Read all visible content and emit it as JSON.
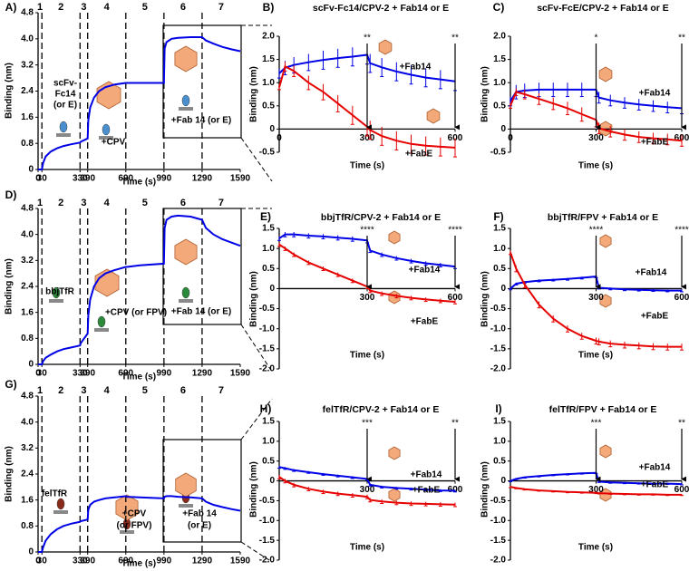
{
  "chart_data": [
    {
      "type": "line",
      "panel": "A)",
      "xlabel": "Time (s)",
      "ylabel": "Binding (nm)",
      "xlim": [
        0,
        1590
      ],
      "xticks": [
        0,
        30,
        330,
        390,
        690,
        990,
        1290,
        1590
      ],
      "ylim": [
        0,
        4.8
      ],
      "yticks": [
        0,
        0.8,
        1.6,
        2.4,
        3.2,
        {
          "value": 4,
          "label": "4.0"
        },
        4.8
      ],
      "steps": [
        "1",
        "2",
        "3",
        "4",
        "5",
        "6",
        "7"
      ],
      "annotations": [
        "scFv-",
        "Fc14",
        "(or E)",
        "+CPV",
        "+Fab 14 (or E)"
      ],
      "x": [
        0,
        30,
        40,
        60,
        100,
        150,
        200,
        260,
        330,
        335,
        390,
        395,
        410,
        440,
        480,
        530,
        600,
        690,
        700,
        800,
        990,
        995,
        1010,
        1050,
        1100,
        1200,
        1290,
        1320,
        1380,
        1450,
        1520,
        1590
      ],
      "series": [
        {
          "color": "#0000e6",
          "values": [
            0,
            0,
            0.2,
            0.4,
            0.55,
            0.65,
            0.72,
            0.77,
            0.82,
            0.85,
            0.95,
            1.5,
            1.9,
            2.2,
            2.4,
            2.52,
            2.6,
            2.65,
            2.65,
            2.65,
            2.65,
            3.7,
            3.9,
            4.0,
            4.03,
            4.05,
            4.05,
            3.95,
            3.85,
            3.75,
            3.68,
            3.62
          ]
        }
      ]
    },
    {
      "type": "line",
      "panel": "B)",
      "title": "scFv-Fc14/CPV-2 + Fab14 or E",
      "xlabel": "Time (s)",
      "ylabel": "Binding (nm)",
      "xlim": [
        0,
        600
      ],
      "xticks": [
        0,
        300,
        600
      ],
      "ylim": [
        -0.5,
        2
      ],
      "yticks": [
        -0.5,
        0,
        0.5,
        {
          "value": 1,
          "label": "1.0"
        },
        1.5,
        {
          "value": 2,
          "label": "2.0"
        }
      ],
      "arrows": [
        {
          "x": 300,
          "label": "**"
        },
        {
          "x": 600,
          "label": "**"
        }
      ],
      "x": [
        0,
        20,
        50,
        100,
        150,
        200,
        250,
        300,
        310,
        350,
        400,
        450,
        500,
        550,
        600
      ],
      "series": [
        {
          "name": "+Fab14",
          "color": "#0000e6",
          "values": [
            1.2,
            1.32,
            1.38,
            1.44,
            1.49,
            1.53,
            1.56,
            1.6,
            1.42,
            1.33,
            1.24,
            1.17,
            1.11,
            1.07,
            1.03
          ],
          "errors": [
            0.1,
            0.15,
            0.17,
            0.18,
            0.2,
            0.2,
            0.2,
            0.2,
            0.2,
            0.2,
            0.2,
            0.2,
            0.2,
            0.2,
            0.2
          ]
        },
        {
          "name": "+FabE",
          "color": "#e60000",
          "values": [
            0.9,
            1.35,
            1.25,
            1.0,
            0.8,
            0.55,
            0.3,
            0.05,
            -0.02,
            -0.15,
            -0.25,
            -0.32,
            -0.36,
            -0.38,
            -0.4
          ],
          "errors": [
            0.05,
            0.1,
            0.12,
            0.15,
            0.17,
            0.18,
            0.2,
            0.2,
            0.2,
            0.2,
            0.2,
            0.2,
            0.2,
            0.2,
            0.2
          ]
        }
      ]
    },
    {
      "type": "line",
      "panel": "C)",
      "title": "scFv-FcE/CPV-2 + Fab14 or E",
      "xlabel": "Time (s)",
      "ylabel": "Binding (nm)",
      "xlim": [
        0,
        600
      ],
      "xticks": [
        0,
        300,
        600
      ],
      "ylim": [
        -0.5,
        2
      ],
      "yticks": [
        -0.5,
        0,
        0.5,
        {
          "value": 1,
          "label": "1.0"
        },
        1.5,
        {
          "value": 2,
          "label": "2.0"
        }
      ],
      "arrows": [
        {
          "x": 300,
          "label": "*"
        },
        {
          "x": 600,
          "label": "**"
        }
      ],
      "x": [
        0,
        20,
        50,
        100,
        150,
        200,
        250,
        300,
        310,
        350,
        400,
        450,
        500,
        550,
        600
      ],
      "series": [
        {
          "name": "+Fab14",
          "color": "#0000e6",
          "values": [
            0.6,
            0.8,
            0.83,
            0.85,
            0.85,
            0.85,
            0.85,
            0.85,
            0.68,
            0.62,
            0.57,
            0.53,
            0.5,
            0.47,
            0.45
          ],
          "errors": [
            0.1,
            0.15,
            0.15,
            0.15,
            0.15,
            0.15,
            0.15,
            0.15,
            0.12,
            0.12,
            0.12,
            0.12,
            0.12,
            0.12,
            0.12
          ]
        },
        {
          "name": "+FabE",
          "color": "#e60000",
          "values": [
            0.5,
            0.8,
            0.75,
            0.65,
            0.55,
            0.45,
            0.32,
            0.2,
            0.02,
            -0.05,
            -0.12,
            -0.17,
            -0.2,
            -0.22,
            -0.25
          ],
          "errors": [
            0.05,
            0.08,
            0.1,
            0.12,
            0.13,
            0.14,
            0.15,
            0.15,
            0.12,
            0.12,
            0.12,
            0.12,
            0.12,
            0.12,
            0.12
          ]
        }
      ]
    },
    {
      "type": "line",
      "panel": "D)",
      "xlabel": "Time (s)",
      "ylabel": "Binding (nm)",
      "xlim": [
        0,
        1590
      ],
      "xticks": [
        0,
        30,
        330,
        390,
        690,
        990,
        1290,
        1590
      ],
      "ylim": [
        0,
        4.8
      ],
      "yticks": [
        0,
        0.8,
        1.6,
        2.4,
        3.2,
        {
          "value": 4,
          "label": "4.0"
        },
        4.8
      ],
      "steps": [
        "1",
        "2",
        "3",
        "4",
        "5",
        "6",
        "7"
      ],
      "annotations": [
        "bbjTfR",
        "+CPV (or FPV)",
        "+Fab 14 (or E)"
      ],
      "x": [
        0,
        30,
        40,
        60,
        100,
        150,
        200,
        260,
        330,
        335,
        390,
        395,
        410,
        440,
        480,
        530,
        600,
        690,
        700,
        800,
        990,
        995,
        1010,
        1050,
        1100,
        1200,
        1290,
        1320,
        1380,
        1450,
        1520,
        1590
      ],
      "series": [
        {
          "color": "#0000e6",
          "values": [
            0,
            0,
            0.1,
            0.2,
            0.3,
            0.4,
            0.47,
            0.52,
            0.58,
            0.65,
            0.95,
            1.5,
            2.0,
            2.4,
            2.65,
            2.8,
            2.9,
            3.0,
            3.0,
            3.05,
            3.1,
            4.2,
            4.45,
            4.55,
            4.58,
            4.55,
            4.45,
            4.2,
            4.0,
            3.85,
            3.75,
            3.65
          ]
        }
      ]
    },
    {
      "type": "line",
      "panel": "E)",
      "title": "bbjTfR/CPV-2 + Fab14 or E",
      "xlabel": "Time (s)",
      "ylabel": "Binding (nm)",
      "xlim": [
        0,
        600
      ],
      "xticks": [
        300,
        600
      ],
      "ylim": [
        -2,
        1.5
      ],
      "yticks": [
        {
          "value": -2,
          "label": "-2.0"
        },
        -1.5,
        {
          "value": -1,
          "label": "-1.0"
        },
        -0.5,
        0,
        0.5,
        {
          "value": 1,
          "label": "1.0"
        },
        1.5
      ],
      "arrows": [
        {
          "x": 300,
          "label": "****"
        },
        {
          "x": 600,
          "label": "****"
        }
      ],
      "x": [
        0,
        20,
        50,
        100,
        150,
        200,
        250,
        300,
        310,
        350,
        400,
        450,
        500,
        550,
        600
      ],
      "series": [
        {
          "name": "+Fab14",
          "color": "#0000e6",
          "values": [
            1.25,
            1.35,
            1.35,
            1.32,
            1.3,
            1.27,
            1.24,
            1.2,
            0.95,
            0.85,
            0.76,
            0.69,
            0.63,
            0.59,
            0.55
          ],
          "errors": [
            0.05,
            0.06,
            0.06,
            0.06,
            0.06,
            0.06,
            0.06,
            0.06,
            0.05,
            0.05,
            0.05,
            0.05,
            0.05,
            0.05,
            0.05
          ]
        },
        {
          "name": "+FabE",
          "color": "#e60000",
          "values": [
            1.1,
            1.0,
            0.85,
            0.65,
            0.5,
            0.35,
            0.2,
            0.05,
            -0.05,
            -0.12,
            -0.18,
            -0.23,
            -0.27,
            -0.3,
            -0.33
          ],
          "errors": [
            0.05,
            0.05,
            0.05,
            0.05,
            0.05,
            0.05,
            0.05,
            0.05,
            0.05,
            0.05,
            0.05,
            0.05,
            0.05,
            0.05,
            0.05
          ]
        }
      ]
    },
    {
      "type": "line",
      "panel": "F)",
      "title": "bbjTfR/FPV + Fab14 or E",
      "xlabel": "Time (s)",
      "ylabel": "Binding (nm)",
      "xlim": [
        0,
        600
      ],
      "xticks": [
        300,
        600
      ],
      "ylim": [
        -2,
        1.5
      ],
      "yticks": [
        {
          "value": -2,
          "label": "-2.0"
        },
        -1.5,
        {
          "value": -1,
          "label": "-1.0"
        },
        -0.5,
        0,
        0.5,
        {
          "value": 1,
          "label": "1.0"
        },
        1.5
      ],
      "arrows": [
        {
          "x": 300,
          "label": "****"
        },
        {
          "x": 600,
          "label": "****"
        }
      ],
      "x": [
        0,
        20,
        50,
        100,
        150,
        200,
        250,
        300,
        310,
        350,
        400,
        450,
        500,
        550,
        600
      ],
      "series": [
        {
          "name": "+Fab14",
          "color": "#0000e6",
          "values": [
            0,
            0.12,
            0.16,
            0.2,
            0.22,
            0.24,
            0.27,
            0.3,
            0.02,
            0,
            -0.02,
            -0.03,
            -0.04,
            -0.05,
            -0.05
          ],
          "errors": [
            0.03,
            0.03,
            0.03,
            0.03,
            0.03,
            0.03,
            0.03,
            0.03,
            0.03,
            0.03,
            0.03,
            0.03,
            0.03,
            0.03,
            0.03
          ]
        },
        {
          "name": "+FabE",
          "color": "#e60000",
          "values": [
            0.9,
            0.5,
            0.1,
            -0.4,
            -0.75,
            -1.0,
            -1.18,
            -1.3,
            -1.32,
            -1.37,
            -1.4,
            -1.42,
            -1.44,
            -1.45,
            -1.45
          ],
          "errors": [
            0.05,
            0.08,
            0.08,
            0.08,
            0.08,
            0.08,
            0.08,
            0.08,
            0.08,
            0.08,
            0.08,
            0.08,
            0.08,
            0.08,
            0.08
          ]
        }
      ]
    },
    {
      "type": "line",
      "panel": "G)",
      "xlabel": "Time (s)",
      "ylabel": "Binding (nm)",
      "xlim": [
        0,
        1590
      ],
      "xticks": [
        0,
        30,
        330,
        390,
        690,
        990,
        1290,
        1590
      ],
      "ylim": [
        0,
        4.8
      ],
      "yticks": [
        0,
        0.8,
        1.6,
        2.4,
        3.2,
        {
          "value": 4,
          "label": "4.0"
        },
        4.8
      ],
      "steps": [
        "1",
        "2",
        "3",
        "4",
        "5",
        "6",
        "7"
      ],
      "annotations": [
        "felTfR",
        "+CPV",
        "(or FPV)",
        "+Fab 14",
        "(or E)"
      ],
      "x": [
        0,
        30,
        40,
        60,
        100,
        150,
        200,
        260,
        330,
        335,
        390,
        395,
        410,
        440,
        480,
        530,
        600,
        690,
        700,
        800,
        990,
        995,
        1010,
        1050,
        1100,
        1200,
        1290,
        1320,
        1380,
        1450,
        1520,
        1590
      ],
      "series": [
        {
          "color": "#0000e6",
          "values": [
            0,
            0,
            0.15,
            0.35,
            0.55,
            0.7,
            0.8,
            0.87,
            0.93,
            0.95,
            1.0,
            1.3,
            1.45,
            1.55,
            1.6,
            1.65,
            1.68,
            1.72,
            1.7,
            1.68,
            1.65,
            1.7,
            1.72,
            1.72,
            1.7,
            1.68,
            1.65,
            1.55,
            1.45,
            1.38,
            1.32,
            1.27
          ]
        }
      ]
    },
    {
      "type": "line",
      "panel": "H)",
      "title": "felTfR/CPV-2 + Fab14 or E",
      "xlabel": "Time (s)",
      "ylabel": "Binding (nm)",
      "xlim": [
        0,
        600
      ],
      "xticks": [
        300,
        600
      ],
      "ylim": [
        -2,
        1.5
      ],
      "yticks": [
        {
          "value": -2,
          "label": "-2.0"
        },
        -1.5,
        {
          "value": -1,
          "label": "-1.0"
        },
        -0.5,
        0,
        0.5,
        {
          "value": 1,
          "label": "1.0"
        },
        1.5
      ],
      "arrows": [
        {
          "x": 300,
          "label": "***"
        },
        {
          "x": 600,
          "label": "**"
        }
      ],
      "x": [
        0,
        20,
        50,
        100,
        150,
        200,
        250,
        300,
        310,
        350,
        400,
        450,
        500,
        550,
        600
      ],
      "series": [
        {
          "name": "+Fab14",
          "color": "#0000e6",
          "values": [
            0.35,
            0.32,
            0.27,
            0.22,
            0.17,
            0.13,
            0.09,
            0.05,
            -0.1,
            -0.15,
            -0.18,
            -0.2,
            -0.22,
            -0.24,
            -0.25
          ],
          "errors": [
            0.03,
            0.03,
            0.03,
            0.03,
            0.03,
            0.03,
            0.03,
            0.03,
            0.03,
            0.03,
            0.03,
            0.03,
            0.03,
            0.03,
            0.03
          ]
        },
        {
          "name": "+FabE",
          "color": "#e60000",
          "values": [
            0.1,
            0.0,
            -0.1,
            -0.2,
            -0.27,
            -0.32,
            -0.36,
            -0.4,
            -0.48,
            -0.52,
            -0.55,
            -0.57,
            -0.58,
            -0.59,
            -0.6
          ],
          "errors": [
            0.05,
            0.05,
            0.05,
            0.05,
            0.05,
            0.05,
            0.05,
            0.05,
            0.05,
            0.05,
            0.05,
            0.05,
            0.05,
            0.05,
            0.05
          ]
        }
      ]
    },
    {
      "type": "line",
      "panel": "I)",
      "title": "felTfR/FPV + Fab14 or E",
      "xlabel": "Time (s)",
      "ylabel": "Binding (nm)",
      "xlim": [
        0,
        600
      ],
      "xticks": [
        300,
        600
      ],
      "ylim": [
        -2,
        1.5
      ],
      "yticks": [
        {
          "value": -2,
          "label": "-2.0"
        },
        -1.5,
        {
          "value": -1,
          "label": "-1.0"
        },
        -0.5,
        0,
        0.5,
        {
          "value": 1,
          "label": "1.0"
        },
        1.5
      ],
      "arrows": [
        {
          "x": 300,
          "label": "***"
        },
        {
          "x": 600,
          "label": "**"
        }
      ],
      "x": [
        0,
        20,
        50,
        100,
        150,
        200,
        250,
        300,
        310,
        350,
        400,
        450,
        500,
        550,
        600
      ],
      "series": [
        {
          "name": "+Fab14",
          "color": "#0000e6",
          "values": [
            0,
            0.05,
            0.09,
            0.12,
            0.15,
            0.17,
            0.19,
            0.2,
            -0.02,
            -0.04,
            -0.05,
            -0.06,
            -0.07,
            -0.07,
            -0.08
          ],
          "errors": [
            0.02,
            0.02,
            0.02,
            0.02,
            0.02,
            0.02,
            0.02,
            0.02,
            0.02,
            0.02,
            0.02,
            0.02,
            0.02,
            0.02,
            0.02
          ]
        },
        {
          "name": "+FabE",
          "color": "#e60000",
          "values": [
            -0.15,
            -0.18,
            -0.21,
            -0.24,
            -0.26,
            -0.28,
            -0.29,
            -0.3,
            -0.31,
            -0.32,
            -0.33,
            -0.34,
            -0.34,
            -0.35,
            -0.35
          ],
          "errors": [
            0.02,
            0.02,
            0.02,
            0.02,
            0.02,
            0.02,
            0.02,
            0.02,
            0.02,
            0.02,
            0.02,
            0.02,
            0.02,
            0.02,
            0.02
          ]
        }
      ]
    }
  ]
}
